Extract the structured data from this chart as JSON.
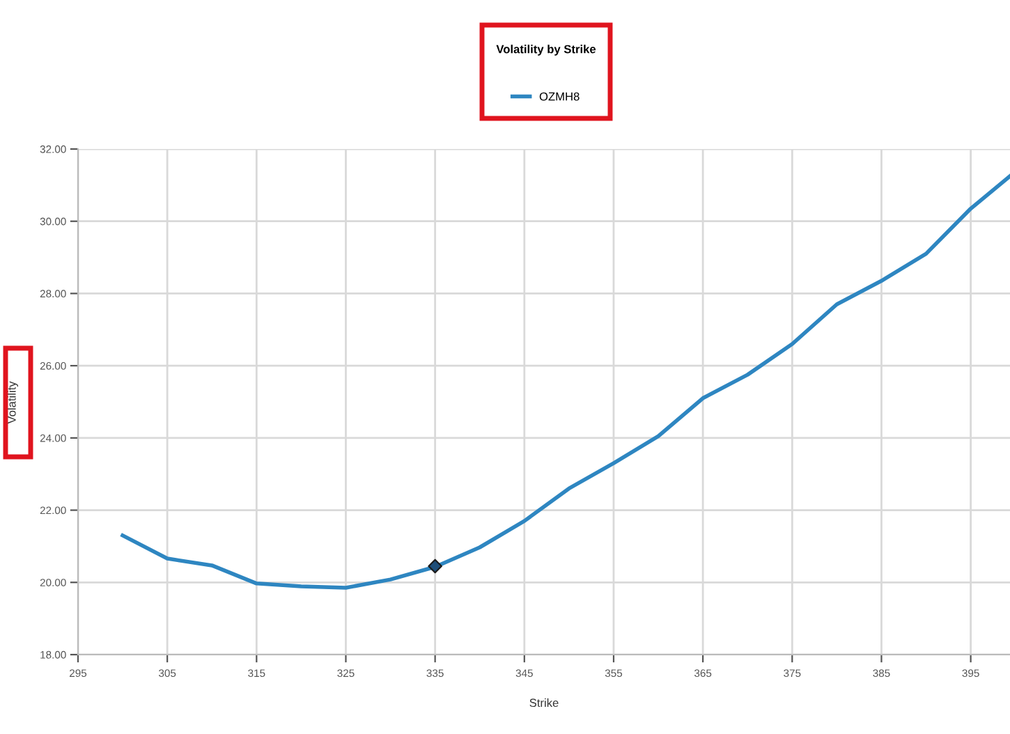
{
  "chart_data": {
    "type": "line",
    "title": "Volatility by Strike",
    "xlabel": "Strike",
    "ylabel": "Volatility",
    "xlim": [
      295,
      399.4
    ],
    "xticks": [
      295,
      305,
      315,
      325,
      335,
      345,
      355,
      365,
      375,
      385,
      395
    ],
    "ylim": [
      18,
      32
    ],
    "yticks": [
      {
        "value": 18,
        "label": "18.00"
      },
      {
        "value": 20,
        "label": "20.00"
      },
      {
        "value": 22,
        "label": "22.00"
      },
      {
        "value": 24,
        "label": "24.00"
      },
      {
        "value": 26,
        "label": "26.00"
      },
      {
        "value": 28,
        "label": "28.00"
      },
      {
        "value": 30,
        "label": "30.00"
      },
      {
        "value": 32,
        "label": "32.00"
      }
    ],
    "grid": true,
    "legend": "top",
    "series": [
      {
        "name": "OZMH8",
        "color": "#2e86c1",
        "marker": "none",
        "x": [
          300,
          305,
          310,
          315,
          320,
          325,
          330,
          335,
          340,
          345,
          350,
          355,
          360,
          365,
          370,
          375,
          380,
          385,
          390,
          395,
          399.4
        ],
        "values": [
          21.3,
          20.66,
          20.47,
          19.97,
          19.89,
          19.85,
          20.08,
          20.43,
          20.97,
          21.7,
          22.6,
          23.3,
          24.05,
          25.1,
          25.75,
          26.6,
          27.7,
          28.35,
          29.1,
          30.35,
          31.25
        ]
      },
      {
        "type": "scatter",
        "color": "#1f4e79",
        "marker": "diamond",
        "x": [
          335
        ],
        "values": [
          20.45
        ]
      }
    ]
  }
}
